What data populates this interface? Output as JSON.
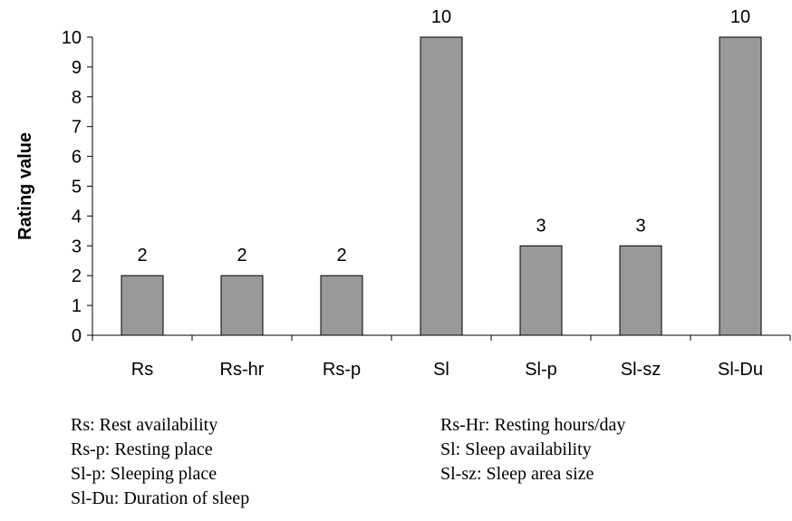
{
  "chart_data": {
    "type": "bar",
    "categories": [
      "Rs",
      "Rs-hr",
      "Rs-p",
      "Sl",
      "Sl-p",
      "Sl-sz",
      "Sl-Du"
    ],
    "values": [
      2,
      2,
      2,
      10,
      3,
      3,
      10
    ],
    "data_labels": [
      "2",
      "2",
      "2",
      "10",
      "3",
      "3",
      "10"
    ],
    "ylabel": "Rating value",
    "xlabel": "",
    "ylim": [
      0,
      10
    ],
    "yticks": [
      "0",
      "1",
      "2",
      "3",
      "4",
      "5",
      "6",
      "7",
      "8",
      "9",
      "10"
    ],
    "bar_color": "#999999",
    "grid": false
  },
  "legend": {
    "left": [
      "Rs: Rest availability",
      "Rs-p: Resting place",
      "Sl-p: Sleeping place",
      "Sl-Du: Duration of sleep"
    ],
    "right": [
      "Rs-Hr: Resting hours/day",
      "Sl: Sleep availability",
      "Sl-sz: Sleep area size"
    ]
  }
}
